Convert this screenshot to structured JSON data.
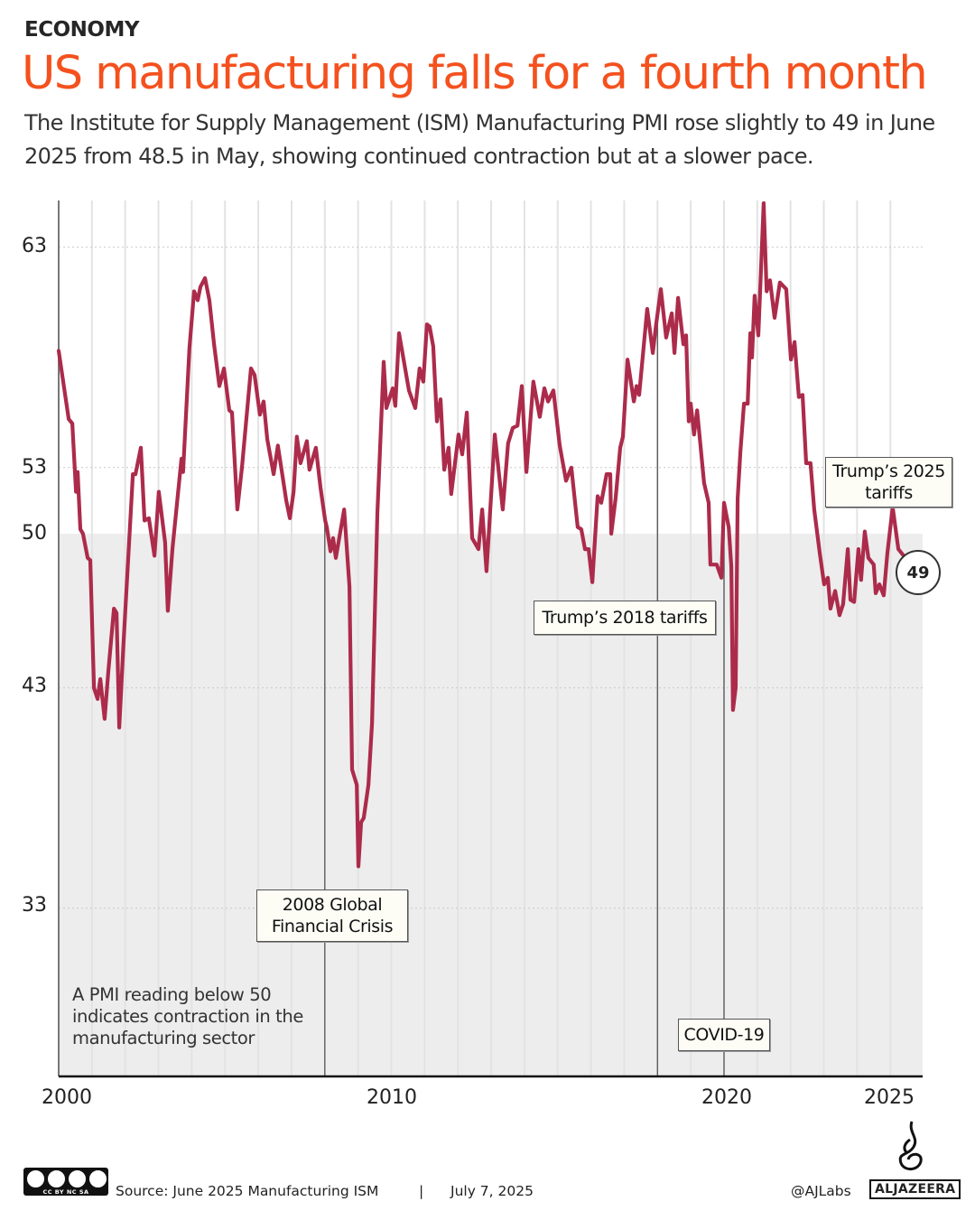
{
  "header": {
    "kicker": "ECONOMY",
    "title": "US manufacturing falls for a fourth month",
    "subtitle": "The Institute for Supply Management (ISM) Manufacturing PMI rose slightly to 49 in June 2025 from 48.5 in May, showing continued contraction but at a slower pace."
  },
  "chart_data": {
    "type": "line",
    "title": "",
    "xlabel": "",
    "ylabel": "",
    "xlim": [
      2000,
      2026
    ],
    "ylim": [
      25.4,
      65.1
    ],
    "x_ticks": [
      "2000",
      "2010",
      "2020",
      "2025"
    ],
    "y_ticks": [
      "63",
      "53",
      "50",
      "43",
      "33"
    ],
    "threshold": 50,
    "threshold_shading": "below",
    "grid": "vertical yearly lines, dotted horizontal at y ticks",
    "line_color": "#ac2b4b",
    "shade_color": "#ededed",
    "title_color": "#f4511e",
    "last_value_label": "49",
    "note": "A PMI reading below 50 indicates contraction in the manufacturing sector",
    "annotations": [
      {
        "label": "2008 Global Financial Crisis",
        "year": 2008.0
      },
      {
        "label": "Trump’s 2018 tariffs",
        "year": 2018.0
      },
      {
        "label": "COVID-19",
        "year": 2020.0
      },
      {
        "label": "Trump’s 2025 tariffs",
        "year": 2025.1
      }
    ],
    "series": [
      {
        "points": [
          [
            2000.0,
            58.3
          ],
          [
            2000.3,
            55.2
          ],
          [
            2000.41,
            55.0
          ],
          [
            2000.52,
            51.9
          ],
          [
            2000.57,
            52.8
          ],
          [
            2000.65,
            50.2
          ],
          [
            2000.73,
            50.0
          ],
          [
            2000.87,
            48.9
          ],
          [
            2000.95,
            48.8
          ],
          [
            2001.06,
            43.0
          ],
          [
            2001.17,
            42.5
          ],
          [
            2001.25,
            43.4
          ],
          [
            2001.38,
            41.6
          ],
          [
            2001.49,
            43.7
          ],
          [
            2001.66,
            46.6
          ],
          [
            2001.74,
            46.4
          ],
          [
            2001.82,
            41.2
          ],
          [
            2001.95,
            45.1
          ],
          [
            2002.23,
            52.7
          ],
          [
            2002.31,
            52.7
          ],
          [
            2002.47,
            53.9
          ],
          [
            2002.58,
            50.6
          ],
          [
            2002.71,
            50.7
          ],
          [
            2002.88,
            49.0
          ],
          [
            2003.01,
            51.9
          ],
          [
            2003.2,
            49.6
          ],
          [
            2003.28,
            46.5
          ],
          [
            2003.42,
            49.3
          ],
          [
            2003.69,
            53.4
          ],
          [
            2003.74,
            52.8
          ],
          [
            2003.93,
            58.4
          ],
          [
            2004.07,
            61.0
          ],
          [
            2004.18,
            60.6
          ],
          [
            2004.26,
            61.2
          ],
          [
            2004.4,
            61.6
          ],
          [
            2004.53,
            60.6
          ],
          [
            2004.67,
            58.6
          ],
          [
            2004.83,
            56.7
          ],
          [
            2004.97,
            57.5
          ],
          [
            2005.13,
            55.6
          ],
          [
            2005.21,
            55.5
          ],
          [
            2005.37,
            51.1
          ],
          [
            2005.51,
            53.0
          ],
          [
            2005.78,
            57.5
          ],
          [
            2005.89,
            57.2
          ],
          [
            2006.05,
            55.4
          ],
          [
            2006.16,
            56.0
          ],
          [
            2006.27,
            54.3
          ],
          [
            2006.46,
            52.7
          ],
          [
            2006.59,
            54.0
          ],
          [
            2006.84,
            51.5
          ],
          [
            2006.95,
            50.7
          ],
          [
            2007.06,
            51.9
          ],
          [
            2007.16,
            54.4
          ],
          [
            2007.27,
            53.2
          ],
          [
            2007.46,
            54.2
          ],
          [
            2007.54,
            52.9
          ],
          [
            2007.73,
            53.9
          ],
          [
            2007.87,
            52.1
          ],
          [
            2008.01,
            50.6
          ],
          [
            2008.06,
            50.3
          ],
          [
            2008.17,
            49.2
          ],
          [
            2008.25,
            49.8
          ],
          [
            2008.33,
            48.9
          ],
          [
            2008.58,
            51.1
          ],
          [
            2008.74,
            47.6
          ],
          [
            2008.82,
            39.3
          ],
          [
            2008.96,
            38.6
          ],
          [
            2009.01,
            34.9
          ],
          [
            2009.09,
            36.9
          ],
          [
            2009.17,
            37.1
          ],
          [
            2009.31,
            38.6
          ],
          [
            2009.42,
            41.4
          ],
          [
            2009.58,
            50.9
          ],
          [
            2009.77,
            57.8
          ],
          [
            2009.85,
            55.7
          ],
          [
            2010.04,
            56.6
          ],
          [
            2010.12,
            55.8
          ],
          [
            2010.23,
            59.1
          ],
          [
            2010.53,
            56.5
          ],
          [
            2010.72,
            55.7
          ],
          [
            2010.85,
            57.5
          ],
          [
            2010.96,
            56.9
          ],
          [
            2011.07,
            59.5
          ],
          [
            2011.15,
            59.4
          ],
          [
            2011.26,
            58.5
          ],
          [
            2011.37,
            55.1
          ],
          [
            2011.48,
            56.1
          ],
          [
            2011.59,
            52.9
          ],
          [
            2011.72,
            53.9
          ],
          [
            2011.8,
            51.8
          ],
          [
            2012.02,
            54.5
          ],
          [
            2012.13,
            53.6
          ],
          [
            2012.27,
            55.5
          ],
          [
            2012.43,
            49.8
          ],
          [
            2012.62,
            49.3
          ],
          [
            2012.73,
            51.1
          ],
          [
            2012.86,
            48.3
          ],
          [
            2013.11,
            54.5
          ],
          [
            2013.35,
            51.1
          ],
          [
            2013.51,
            54.1
          ],
          [
            2013.65,
            54.8
          ],
          [
            2013.79,
            54.9
          ],
          [
            2013.92,
            56.7
          ],
          [
            2014.06,
            52.8
          ],
          [
            2014.27,
            56.9
          ],
          [
            2014.46,
            55.3
          ],
          [
            2014.6,
            56.6
          ],
          [
            2014.71,
            56.0
          ],
          [
            2014.87,
            56.5
          ],
          [
            2015.06,
            54.0
          ],
          [
            2015.25,
            52.4
          ],
          [
            2015.41,
            53.0
          ],
          [
            2015.6,
            50.3
          ],
          [
            2015.71,
            50.2
          ],
          [
            2015.82,
            49.3
          ],
          [
            2015.93,
            49.3
          ],
          [
            2016.04,
            47.8
          ],
          [
            2016.2,
            51.7
          ],
          [
            2016.31,
            51.4
          ],
          [
            2016.47,
            52.7
          ],
          [
            2016.58,
            52.7
          ],
          [
            2016.61,
            50.0
          ],
          [
            2016.74,
            51.6
          ],
          [
            2016.88,
            53.9
          ],
          [
            2016.96,
            54.4
          ],
          [
            2017.1,
            57.9
          ],
          [
            2017.29,
            56.0
          ],
          [
            2017.37,
            56.7
          ],
          [
            2017.45,
            56.3
          ],
          [
            2017.69,
            60.2
          ],
          [
            2017.86,
            58.2
          ],
          [
            2017.96,
            59.5
          ],
          [
            2018.1,
            61.1
          ],
          [
            2018.26,
            58.9
          ],
          [
            2018.43,
            60.0
          ],
          [
            2018.51,
            58.2
          ],
          [
            2018.62,
            60.7
          ],
          [
            2018.78,
            58.6
          ],
          [
            2018.86,
            59.0
          ],
          [
            2018.94,
            55.1
          ],
          [
            2019.0,
            55.9
          ],
          [
            2019.1,
            54.5
          ],
          [
            2019.19,
            55.6
          ],
          [
            2019.4,
            52.3
          ],
          [
            2019.54,
            51.4
          ],
          [
            2019.59,
            48.6
          ],
          [
            2019.78,
            48.6
          ],
          [
            2019.92,
            48.0
          ],
          [
            2020.0,
            51.4
          ],
          [
            2020.14,
            50.3
          ],
          [
            2020.22,
            48.5
          ],
          [
            2020.27,
            42.0
          ],
          [
            2020.35,
            43.0
          ],
          [
            2020.41,
            51.6
          ],
          [
            2020.49,
            53.7
          ],
          [
            2020.6,
            55.9
          ],
          [
            2020.71,
            55.9
          ],
          [
            2020.79,
            59.1
          ],
          [
            2020.84,
            58.0
          ],
          [
            2020.92,
            60.8
          ],
          [
            2021.03,
            59.0
          ],
          [
            2021.19,
            65.0
          ],
          [
            2021.28,
            61.0
          ],
          [
            2021.38,
            61.5
          ],
          [
            2021.52,
            59.8
          ],
          [
            2021.68,
            61.4
          ],
          [
            2021.87,
            61.1
          ],
          [
            2022.01,
            57.9
          ],
          [
            2022.12,
            58.7
          ],
          [
            2022.25,
            56.2
          ],
          [
            2022.36,
            56.3
          ],
          [
            2022.47,
            53.2
          ],
          [
            2022.6,
            53.2
          ],
          [
            2022.71,
            51.1
          ],
          [
            2022.88,
            49.1
          ],
          [
            2023.01,
            47.7
          ],
          [
            2023.12,
            48.0
          ],
          [
            2023.2,
            46.6
          ],
          [
            2023.34,
            47.4
          ],
          [
            2023.47,
            46.3
          ],
          [
            2023.58,
            46.8
          ],
          [
            2023.72,
            49.3
          ],
          [
            2023.8,
            47.0
          ],
          [
            2023.91,
            46.9
          ],
          [
            2024.04,
            49.3
          ],
          [
            2024.12,
            47.9
          ],
          [
            2024.23,
            50.1
          ],
          [
            2024.34,
            48.9
          ],
          [
            2024.5,
            48.6
          ],
          [
            2024.56,
            47.3
          ],
          [
            2024.67,
            47.7
          ],
          [
            2024.8,
            47.2
          ],
          [
            2024.91,
            49.1
          ],
          [
            2025.07,
            51.2
          ],
          [
            2025.24,
            49.3
          ],
          [
            2025.4,
            49.0
          ]
        ]
      }
    ]
  },
  "footer": {
    "license": "CC BY NC SA",
    "source": "Source:  June 2025 Manufacturing ISM",
    "separator": "|",
    "date": "July 7, 2025",
    "handle": "@AJLabs",
    "brand": "ALJAZEERA"
  }
}
